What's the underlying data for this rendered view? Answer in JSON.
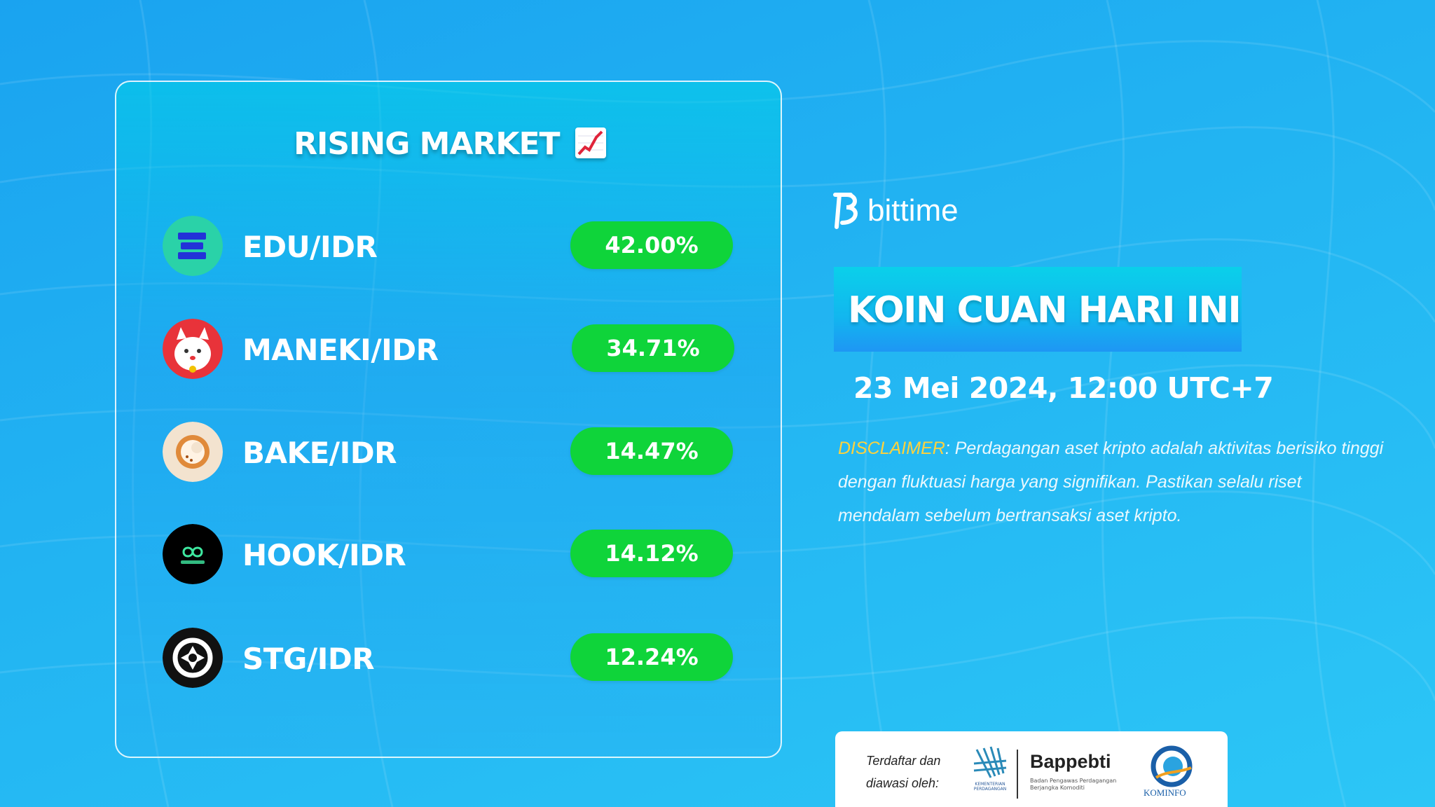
{
  "card": {
    "title": "RISING MARKET",
    "title_icon": "chart-increasing-icon",
    "items": [
      {
        "pair": "EDU/IDR",
        "change": "42.00%",
        "icon": "edu-coin-icon",
        "icon_color": "#2ad2a8"
      },
      {
        "pair": "MANEKI/IDR",
        "change": "34.71%",
        "icon": "maneki-coin-icon",
        "icon_color": "#e8333a"
      },
      {
        "pair": "BAKE/IDR",
        "change": "14.47%",
        "icon": "bake-coin-icon",
        "icon_color": "#f3e3cf"
      },
      {
        "pair": "HOOK/IDR",
        "change": "14.12%",
        "icon": "hook-coin-icon",
        "icon_color": "#000000"
      },
      {
        "pair": "STG/IDR",
        "change": "12.24%",
        "icon": "stg-coin-icon",
        "icon_color": "#111111"
      }
    ]
  },
  "brand": {
    "name": "bittime",
    "icon": "bittime-logo-icon"
  },
  "headline": "KOIN CUAN HARI INI",
  "date": "23 Mei 2024, 12:00 UTC+7",
  "disclaimer": {
    "label": "DISCLAIMER",
    "text": ": Perdagangan aset kripto adalah aktivitas berisiko tinggi dengan fluktuasi harga yang signifikan. Pastikan selalu riset mendalam sebelum bertransaksi aset kripto."
  },
  "registration": {
    "text_line1": "Terdaftar dan",
    "text_line2": "diawasi oleh:",
    "kemendag_text": "KEMENTERIAN PERDAGANGAN",
    "bappebti": "Bappebti",
    "bappebti_sub": "Badan Pengawas Perdagangan Berjangka Komoditi",
    "kominfo": "KOMINFO"
  },
  "colors": {
    "background": "#22b4f2",
    "badge_green": "#0fd43a",
    "disclaimer_label": "#ffd23c"
  }
}
